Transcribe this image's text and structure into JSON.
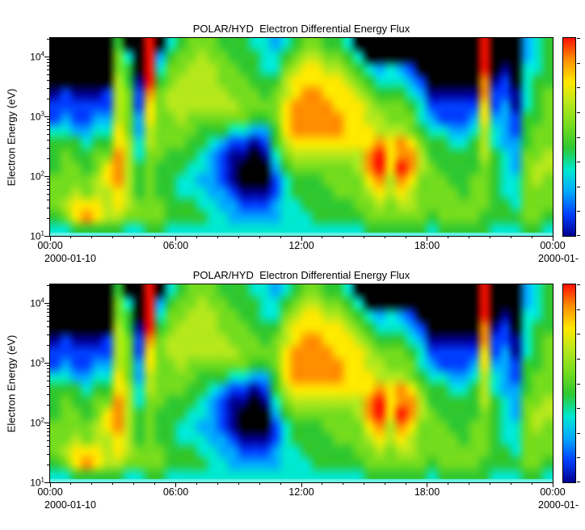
{
  "figure": {
    "background": "#ffffff",
    "panels": [
      {
        "title": "POLAR/HYD  Electron Differential Energy Flux",
        "y_axis": {
          "label": "Electron Energy (eV)",
          "ticks": [
            {
              "base": "10",
              "exp": "4"
            },
            {
              "base": "10",
              "exp": "3"
            },
            {
              "base": "10",
              "exp": "2"
            },
            {
              "base": "10",
              "exp": "1"
            }
          ]
        },
        "x_axis": {
          "ticks": [
            "00:00",
            "06:00",
            "12:00",
            "18:00",
            "00:00"
          ],
          "date_left": "2000-01-10",
          "date_right": "2000-01-"
        }
      },
      {
        "title": "POLAR/HYD  Electron Differential Energy Flux",
        "y_axis": {
          "label": "Electron Energy (eV)",
          "ticks": [
            {
              "base": "10",
              "exp": "4"
            },
            {
              "base": "10",
              "exp": "3"
            },
            {
              "base": "10",
              "exp": "2"
            },
            {
              "base": "10",
              "exp": "1"
            }
          ]
        },
        "x_axis": {
          "ticks": [
            "00:00",
            "06:00",
            "12:00",
            "18:00",
            "00:00"
          ],
          "date_left": "2000-01-10",
          "date_right": "2000-01-"
        }
      }
    ]
  },
  "chart_data": {
    "type": "heatmap",
    "title": "POLAR/HYD  Electron Differential Energy Flux",
    "panels": 2,
    "panels_note": "two identical spectrogram panels stacked vertically",
    "x": {
      "tick_labels": [
        "00:00",
        "06:00",
        "12:00",
        "18:00",
        "00:00"
      ],
      "range_hours": [
        0,
        24
      ],
      "start_date": "2000-01-10",
      "minor_tick_interval_hours": 1
    },
    "y": {
      "label": "Electron Energy (eV)",
      "scale": "log",
      "tick_labels": [
        "10^1",
        "10^2",
        "10^3",
        "10^4"
      ],
      "range_ev": [
        10,
        20000
      ]
    },
    "z": {
      "quantity": "electron differential energy flux (color-coded)",
      "colorscale": [
        "#000000",
        "#000090",
        "#0040ff",
        "#00a8ff",
        "#00e8d0",
        "#2fc832",
        "#73dc1e",
        "#b4e81c",
        "#ffe800",
        "#ff9000",
        "#ff0f00"
      ],
      "colorscale_note": "index 0 = black (no/minimal flux) up to index 10 = red (maximum flux); colorbar on right runs red(top) to dark blue(bottom)"
    },
    "grid_encoding": "16 energy rows (top=~2e4 eV, bottom=~10 eV, log-spaced) x 48 half-hour time columns (00:00-24:00); each char is flux level 0-9 or 'a'=10 per colorscale",
    "grid": [
      "000000500a0456665554434566554000000000000a000345",
      "000000640a3566766555445677665400000000000a000345",
      "000000650a4667776655446788776543432000000a010445",
      "000000751a56777766655578888876544432000009120455",
      "121112762967777776665678998887655543111119221456",
      "222222762867777777666689999888766654222228231456",
      "232233763866766666655689999988776664322238332556",
      "443344863766665554433589999988877765443347432566",
      "555455874766655432212578888888898986554457433566",
      "5655669746655543211014677777779a8997555557543667",
      "5665689756555443210003566666679a8a97655556543677",
      "666678975655443321000245556666897986665566544676",
      "667677875655444332111245555666787876666566544666",
      "678887876665554433222344555556676776666666554666",
      "568987766665555443333344455555666666566665555665",
      "445555544554444444444444444444555555455555444554"
    ],
    "bottom_strip_color": "#66f2e4",
    "legend_position": "right vertical colorbar with tick marks"
  }
}
